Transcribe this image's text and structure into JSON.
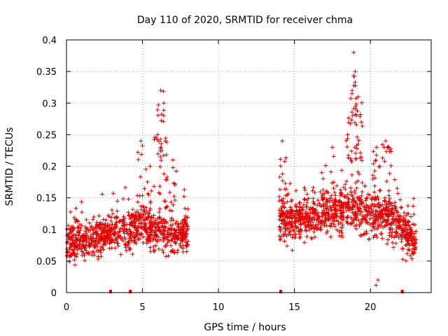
{
  "chart_data": {
    "type": "scatter",
    "title": "Day 110 of 2020, SRMTID for receiver chma",
    "xlabel": "GPS time / hours",
    "ylabel": "SRMTID / TECUs",
    "xlim": [
      0,
      24
    ],
    "ylim": [
      0,
      0.4
    ],
    "xticks": [
      0,
      5,
      10,
      15,
      20
    ],
    "xtick_labels": [
      "0",
      "5",
      "10",
      "15",
      "20"
    ],
    "yticks": [
      0,
      0.05,
      0.1,
      0.15,
      0.2,
      0.25,
      0.3,
      0.35,
      0.4
    ],
    "ytick_labels": [
      "0",
      "0.05",
      "0.1",
      "0.15",
      "0.2",
      "0.25",
      "0.3",
      "0.35",
      "0.4"
    ],
    "grid": true,
    "marker": "+",
    "color": "#e00000",
    "segments": [
      {
        "name": "segment-1",
        "x_range": [
          0,
          8
        ],
        "baseline": [
          [
            0,
            0.08
          ],
          [
            1,
            0.085
          ],
          [
            2,
            0.09
          ],
          [
            3,
            0.095
          ],
          [
            4,
            0.095
          ],
          [
            5,
            0.11
          ],
          [
            5.5,
            0.1
          ],
          [
            6,
            0.1
          ],
          [
            6.5,
            0.095
          ],
          [
            7,
            0.09
          ],
          [
            8,
            0.095
          ]
        ],
        "spread": 0.03,
        "points": 900
      },
      {
        "name": "segment-2",
        "x_range": [
          14,
          23
        ],
        "baseline": [
          [
            14,
            0.12
          ],
          [
            15,
            0.115
          ],
          [
            16,
            0.12
          ],
          [
            17,
            0.125
          ],
          [
            18,
            0.13
          ],
          [
            19,
            0.13
          ],
          [
            20,
            0.125
          ],
          [
            21,
            0.12
          ],
          [
            22,
            0.11
          ],
          [
            23,
            0.08
          ]
        ],
        "spread": 0.035,
        "points": 1000
      }
    ],
    "peaks": [
      {
        "x": 4.9,
        "y": 0.24
      },
      {
        "x": 5.5,
        "y": 0.2
      },
      {
        "x": 6.0,
        "y": 0.25
      },
      {
        "x": 6.2,
        "y": 0.32
      },
      {
        "x": 6.4,
        "y": 0.3
      },
      {
        "x": 6.5,
        "y": 0.24
      },
      {
        "x": 7.0,
        "y": 0.21
      },
      {
        "x": 14.2,
        "y": 0.24
      },
      {
        "x": 17.5,
        "y": 0.23
      },
      {
        "x": 18.5,
        "y": 0.25
      },
      {
        "x": 18.8,
        "y": 0.32
      },
      {
        "x": 18.9,
        "y": 0.38
      },
      {
        "x": 19.0,
        "y": 0.35
      },
      {
        "x": 19.2,
        "y": 0.31
      },
      {
        "x": 19.4,
        "y": 0.27
      },
      {
        "x": 20.4,
        "y": 0.23
      },
      {
        "x": 21.0,
        "y": 0.24
      },
      {
        "x": 21.2,
        "y": 0.23
      },
      {
        "x": 20.5,
        "y": 0.02
      }
    ],
    "axis_markers": [
      2.9,
      4.2,
      14.1,
      22.1
    ]
  }
}
